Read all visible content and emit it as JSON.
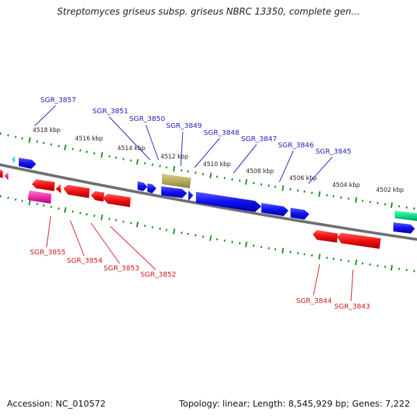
{
  "title": "Streptomyces griseus subsp. griseus NBRC 13350, complete gen...",
  "footer": {
    "accession": "Accession: NC_010572",
    "summary": "Topology: linear; Length: 8,545,929 bp; Genes: 7,222"
  },
  "colors": {
    "forward_label": "#1c1cc0",
    "reverse_label": "#d01818",
    "scale_tick": "#1a8a1a",
    "backbone": "#808080"
  },
  "scale_labels": [
    "4518 kbp",
    "4516 kbp",
    "4514 kbp",
    "4512 kbp",
    "4510 kbp",
    "4508 kbp",
    "4506 kbp",
    "4504 kbp",
    "4502 kbp"
  ],
  "forward_genes": [
    "SGR_3857",
    "SGR_3851",
    "SGR_3850",
    "SGR_3849",
    "SGR_3848",
    "SGR_3847",
    "SGR_3846",
    "SGR_3845"
  ],
  "reverse_genes": [
    "SGR_3855",
    "SGR_3854",
    "SGR_3853",
    "SGR_3852",
    "SGR_3844",
    "SGR_3843"
  ]
}
